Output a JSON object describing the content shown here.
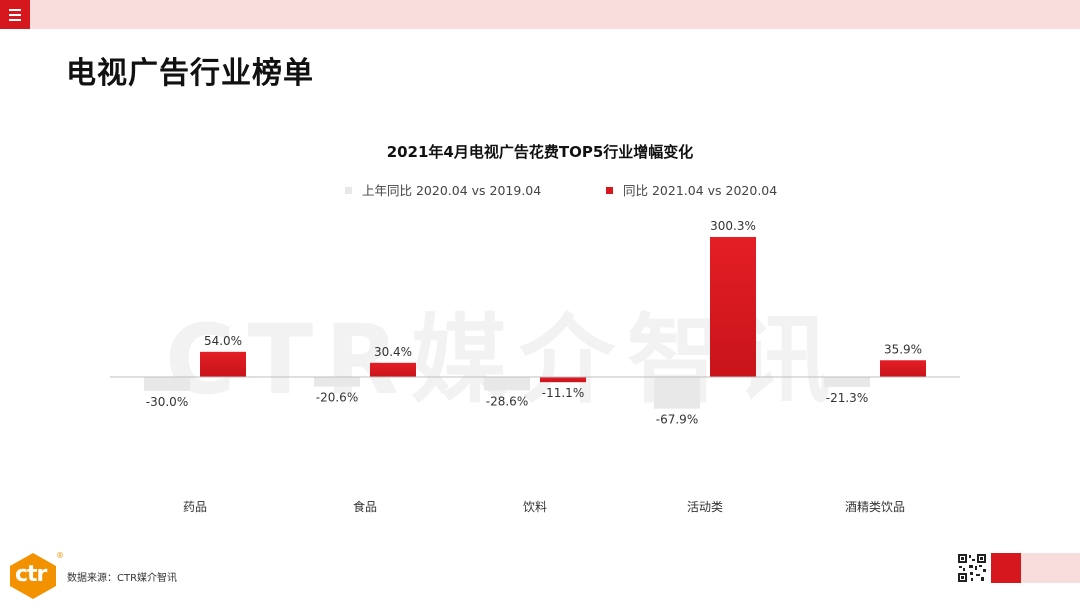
{
  "page": {
    "title": "电视广告行业榜单",
    "watermark": "CTR媒介智讯",
    "source": "数据来源：CTR媒介智讯",
    "logo_text": "ctr",
    "logo_mark": "®"
  },
  "colors": {
    "accent": "#d7171e",
    "prev": "#e8e8e8",
    "topbar": "#f9dcdc"
  },
  "icons": {
    "menu": "hamburger-menu-icon",
    "qr": "qr-code-icon"
  },
  "chart_data": {
    "type": "bar",
    "title": "2021年4月电视广告花费TOP5行业增幅变化",
    "categories": [
      "药品",
      "食品",
      "饮料",
      "活动类",
      "酒精类饮品"
    ],
    "series": [
      {
        "name": "上年同比 2020.04 vs 2019.04",
        "values": [
          -30.0,
          -20.6,
          -28.6,
          -67.9,
          -21.3
        ],
        "labels": [
          "-30.0%",
          "-20.6%",
          "-28.6%",
          "-67.9%",
          "-21.3%"
        ],
        "color": "#e8e8e8"
      },
      {
        "name": "同比 2021.04 vs 2020.04",
        "values": [
          54.0,
          30.4,
          -11.1,
          300.3,
          35.9
        ],
        "labels": [
          "54.0%",
          "30.4%",
          "-11.1%",
          "300.3%",
          "35.9%"
        ],
        "color": "#d7171e"
      }
    ],
    "grid": false,
    "legend": "top-center"
  }
}
